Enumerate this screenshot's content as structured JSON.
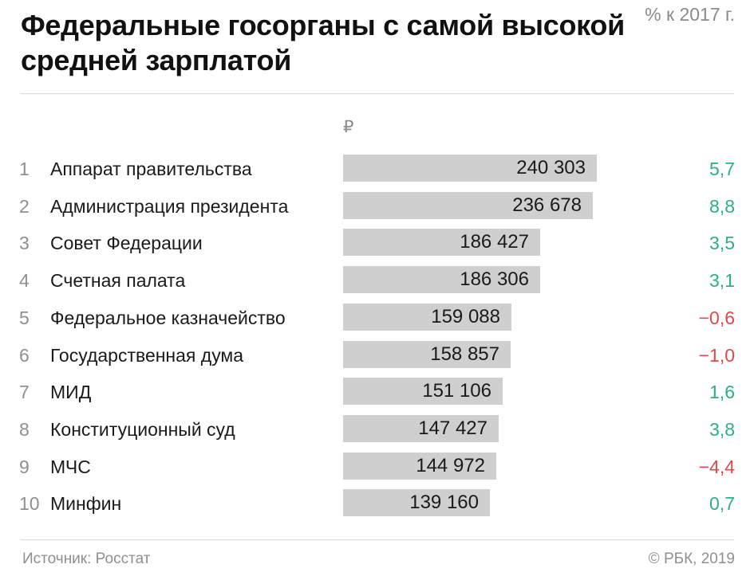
{
  "title": "Федеральные госорганы с самой высокой средней зарплатой",
  "colors": {
    "bar": "#cfcfcf",
    "positive": "#2bb083",
    "negative": "#e2474b",
    "muted": "#8f8f8f"
  },
  "chart_data": {
    "type": "bar",
    "title": "Федеральные госорганы с самой высокой средней зарплатой",
    "value_header": "₽",
    "change_header": "% к 2017 г.",
    "categories": [
      "Аппарат правительства",
      "Администрация президента",
      "Совет Федерации",
      "Счетная палата",
      "Федеральное казначейство",
      "Государственная дума",
      "МИД",
      "Конституционный суд",
      "МЧС",
      "Минфин"
    ],
    "ranks": [
      "1",
      "2",
      "3",
      "4",
      "5",
      "6",
      "7",
      "8",
      "9",
      "10"
    ],
    "values": [
      240303,
      236678,
      186427,
      186306,
      159088,
      158857,
      151106,
      147427,
      144972,
      139160
    ],
    "value_labels": [
      "240 303",
      "236 678",
      "186 427",
      "186 306",
      "159 088",
      "158 857",
      "151 106",
      "147 427",
      "144 972",
      "139 160"
    ],
    "changes": [
      5.7,
      8.8,
      3.5,
      3.1,
      -0.6,
      -1.0,
      1.6,
      3.8,
      -4.4,
      0.7
    ],
    "change_labels": [
      "5,7",
      "8,8",
      "3,5",
      "3,1",
      "−0,6",
      "−1,0",
      "1,6",
      "3,8",
      "−4,4",
      "0,7"
    ],
    "xlim": [
      0,
      240303
    ],
    "orientation": "horizontal",
    "grid": false
  },
  "footer": {
    "source": "Источник: Росстат",
    "copyright": "© РБК, 2019"
  }
}
